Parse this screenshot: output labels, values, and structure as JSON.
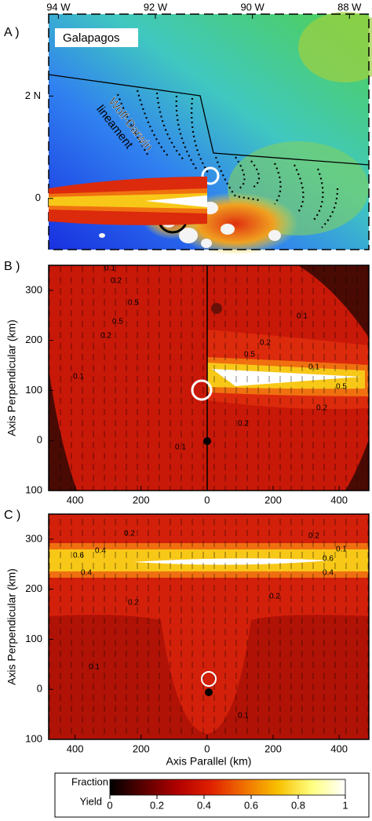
{
  "map": {
    "label": "A )",
    "title": "Galapagos",
    "annotation": [
      "Wolf-Darwin",
      "lineament"
    ],
    "xlim": [
      -94.2,
      -87.6
    ],
    "ylim": [
      -1,
      3.6
    ],
    "xticks": [
      {
        "value": -94,
        "label": "94 W"
      },
      {
        "value": -92,
        "label": "92 W"
      },
      {
        "value": -90,
        "label": "90 W"
      },
      {
        "value": -88,
        "label": "88 W"
      }
    ],
    "yticks": [
      {
        "value": 2,
        "label": "2 N"
      },
      0
    ]
  },
  "chart_data": [
    {
      "type": "contour",
      "label": "B )",
      "ylabel": "Axis Perpendicular (km)",
      "xlim": [
        -480,
        490
      ],
      "ylim": [
        -100,
        350
      ],
      "xticks": [
        {
          "value": -400,
          "label": "400"
        },
        {
          "value": -200,
          "label": "200"
        },
        0,
        200,
        400
      ],
      "yticks": [
        {
          "value": -100,
          "label": "100"
        },
        0,
        100,
        200,
        300
      ],
      "contour_labels": [
        "0.1",
        "0.2",
        "0.5",
        "0.5",
        "0.2",
        "0.1",
        "0.1",
        "0.5",
        "0.2",
        "0.1",
        "0.5",
        "0.2",
        "0.2",
        "0.1"
      ]
    },
    {
      "type": "contour",
      "label": "C )",
      "ylabel": "Axis Perpendicular (km)",
      "xlabel": "Axis Parallel (km)",
      "xlim": [
        -480,
        490
      ],
      "ylim": [
        -100,
        350
      ],
      "xticks": [
        {
          "value": -400,
          "label": "400"
        },
        {
          "value": -200,
          "label": "200"
        },
        0,
        200,
        400
      ],
      "yticks": [
        {
          "value": -100,
          "label": "100"
        },
        0,
        100,
        200,
        300
      ],
      "contour_labels": [
        "0.2",
        "0.4",
        "0.6",
        "0.4",
        "0.2",
        "0.2",
        "0.1",
        "0.6",
        "0.4",
        "0.2",
        "0.1",
        "0.1"
      ]
    }
  ],
  "colorbar": {
    "title": [
      "Fraction",
      "Yield"
    ],
    "lim": [
      0,
      1
    ],
    "ticks": [
      0,
      0.2,
      0.4,
      0.6,
      0.8,
      1
    ],
    "colors": [
      "#000000",
      "#5a0000",
      "#b00000",
      "#e02000",
      "#f07000",
      "#f8c000",
      "#ffff80",
      "#ffffff"
    ]
  }
}
